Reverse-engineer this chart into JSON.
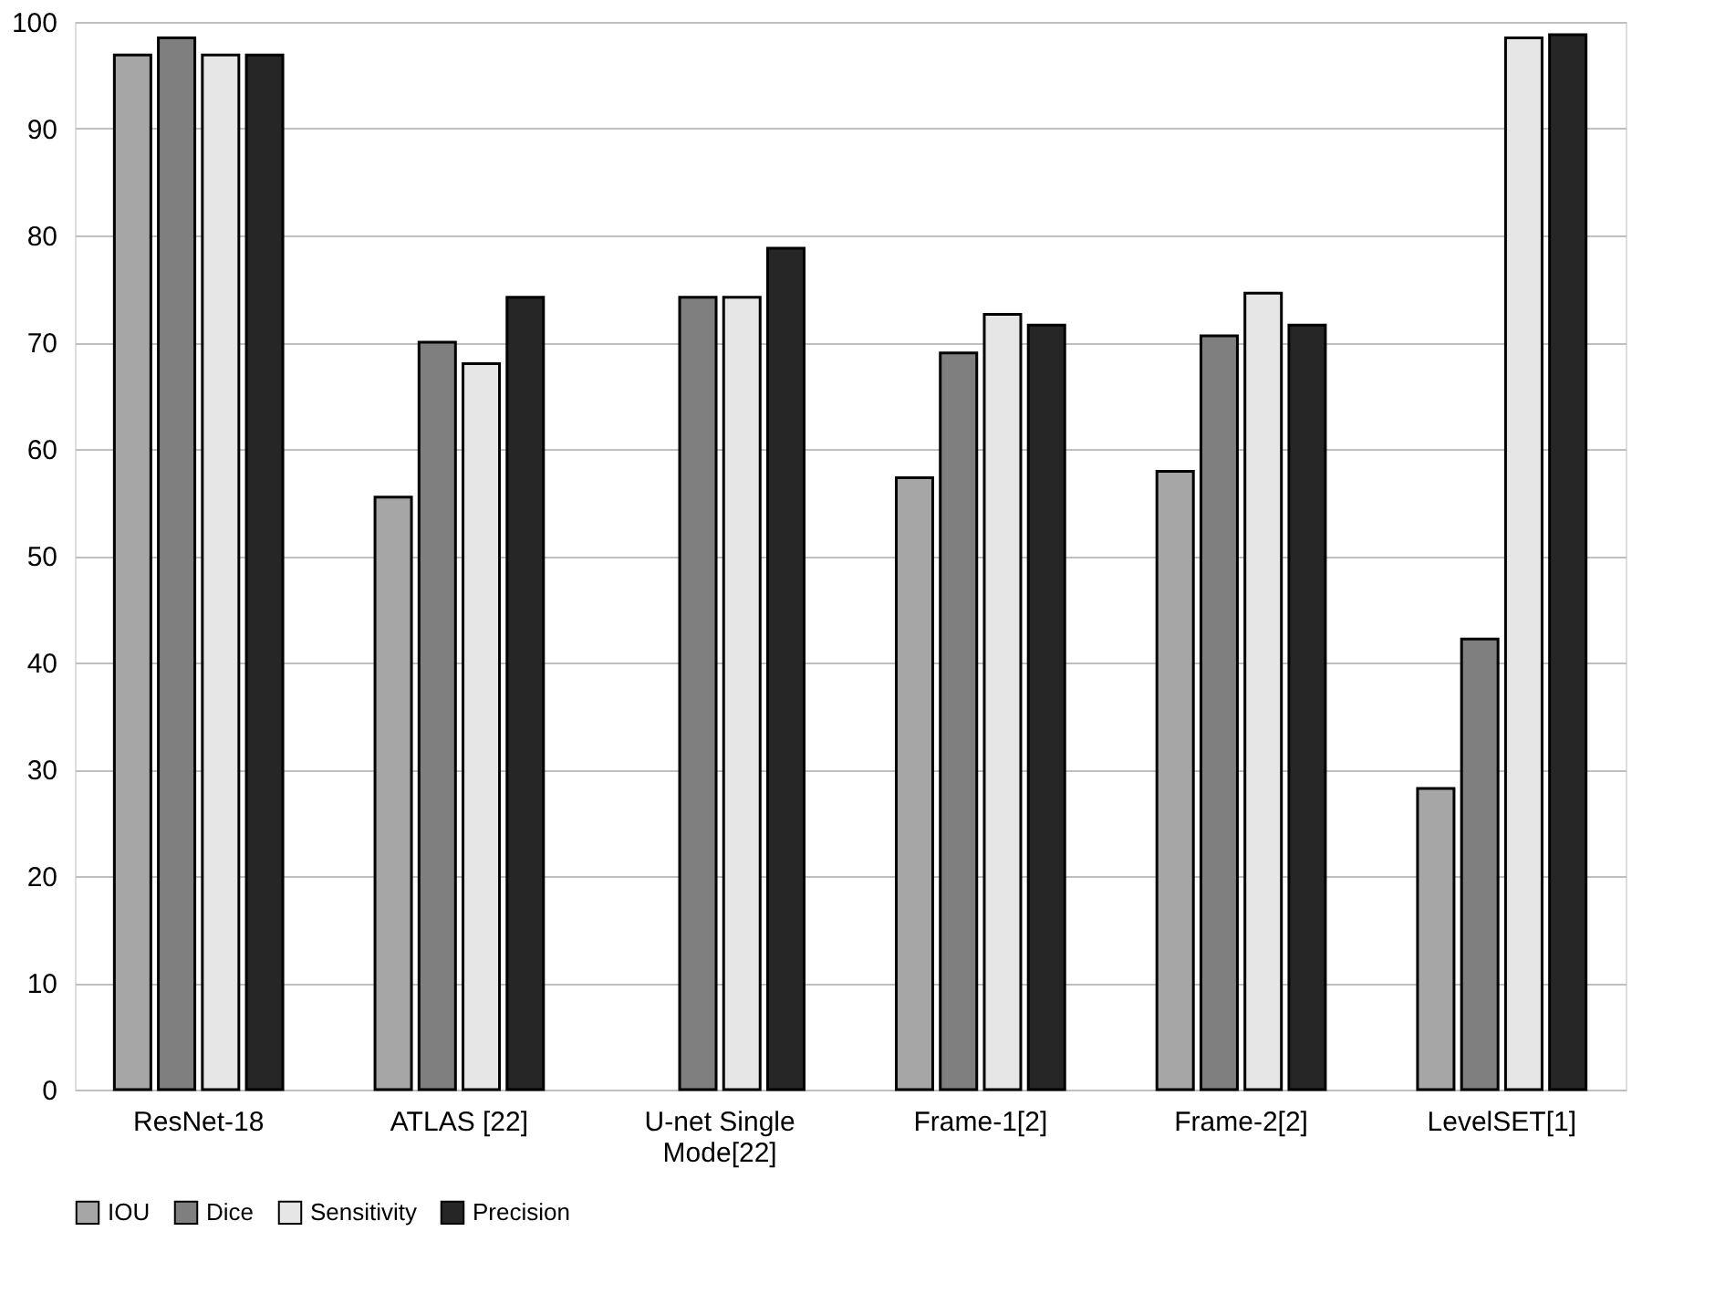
{
  "chart_data": {
    "type": "bar",
    "categories": [
      "ResNet-18",
      "ATLAS [22]",
      "U-net Single Mode[22]",
      "Frame-1[2]",
      "Frame-2[2]",
      "LevelSET[1]"
    ],
    "series": [
      {
        "name": "IOU",
        "color": "#a6a6a6",
        "values": [
          96.9,
          55.5,
          null,
          57.3,
          57.9,
          28.2
        ]
      },
      {
        "name": "Dice",
        "color": "#7f7f7f",
        "values": [
          98.5,
          70.0,
          74.2,
          69.0,
          70.6,
          42.2
        ]
      },
      {
        "name": "Sensitivity",
        "color": "#e6e6e6",
        "values": [
          96.9,
          68.0,
          74.2,
          72.6,
          74.6,
          98.5
        ]
      },
      {
        "name": "Precision",
        "color": "#262626",
        "values": [
          96.9,
          74.2,
          78.8,
          71.6,
          71.6,
          98.8
        ]
      }
    ],
    "ylim": [
      0,
      100
    ],
    "yticks": [
      0,
      10,
      20,
      30,
      40,
      50,
      60,
      70,
      80,
      90,
      100
    ],
    "grid": "y",
    "legend": "bottom"
  }
}
